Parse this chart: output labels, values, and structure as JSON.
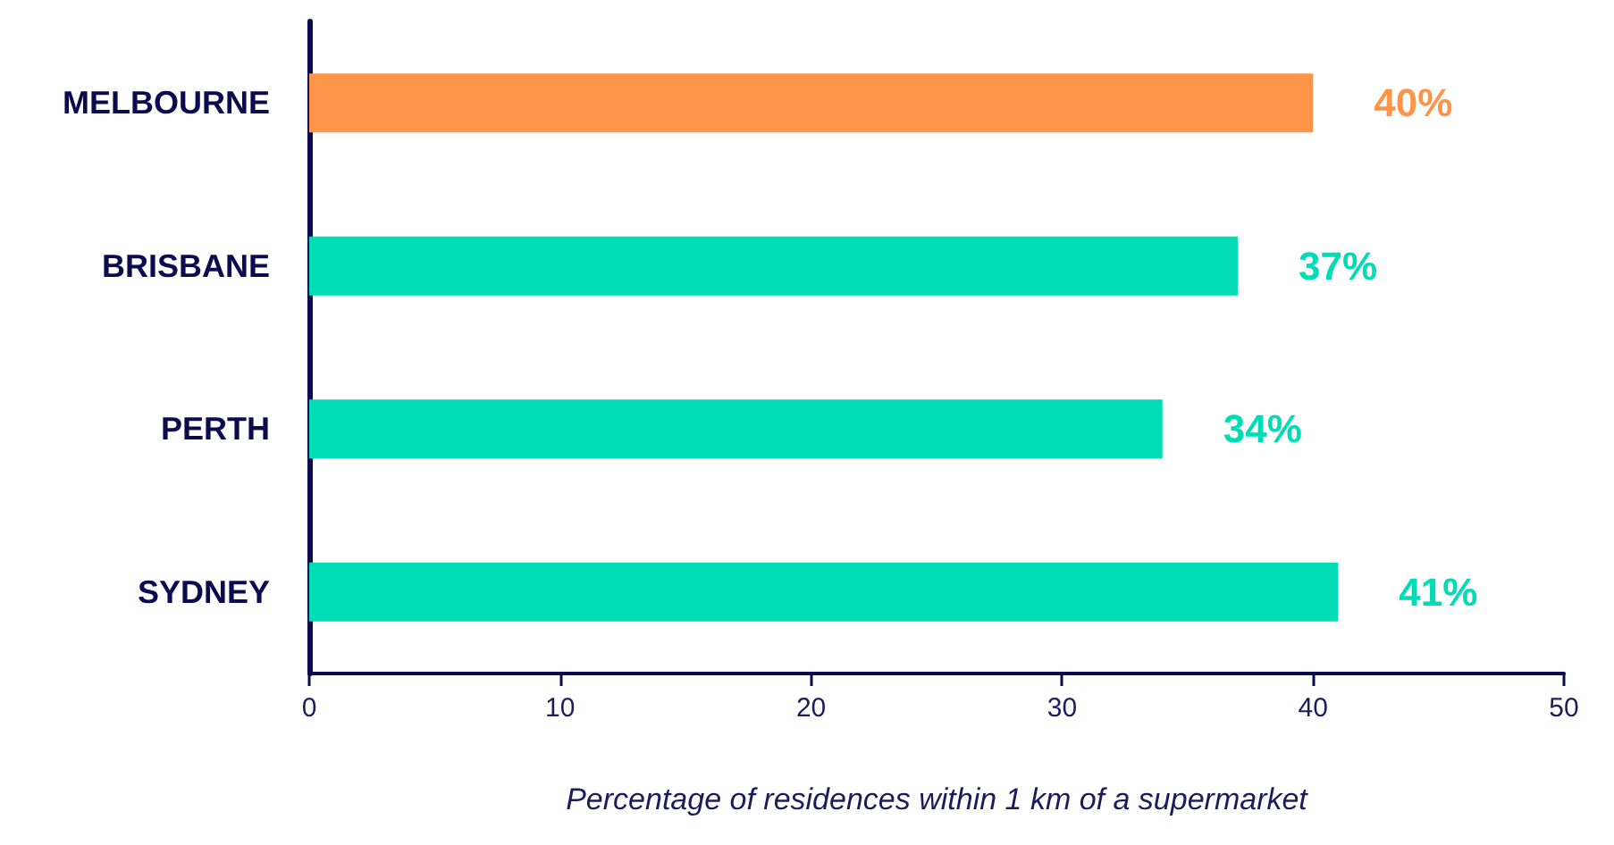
{
  "chart_data": {
    "type": "bar",
    "orientation": "horizontal",
    "categories": [
      "MELBOURNE",
      "BRISBANE",
      "PERTH",
      "SYDNEY"
    ],
    "values": [
      40,
      37,
      34,
      41
    ],
    "colors": [
      "#fd9448",
      "#00dcb5",
      "#00dcb5",
      "#00dcb5"
    ],
    "value_labels": [
      "40%",
      "37%",
      "34%",
      "41%"
    ],
    "xlabel": "Percentage of residences within 1 km of a supermarket",
    "xlim": [
      0,
      50
    ],
    "xticks": [
      0,
      10,
      20,
      30,
      40,
      50
    ],
    "grid": false
  }
}
